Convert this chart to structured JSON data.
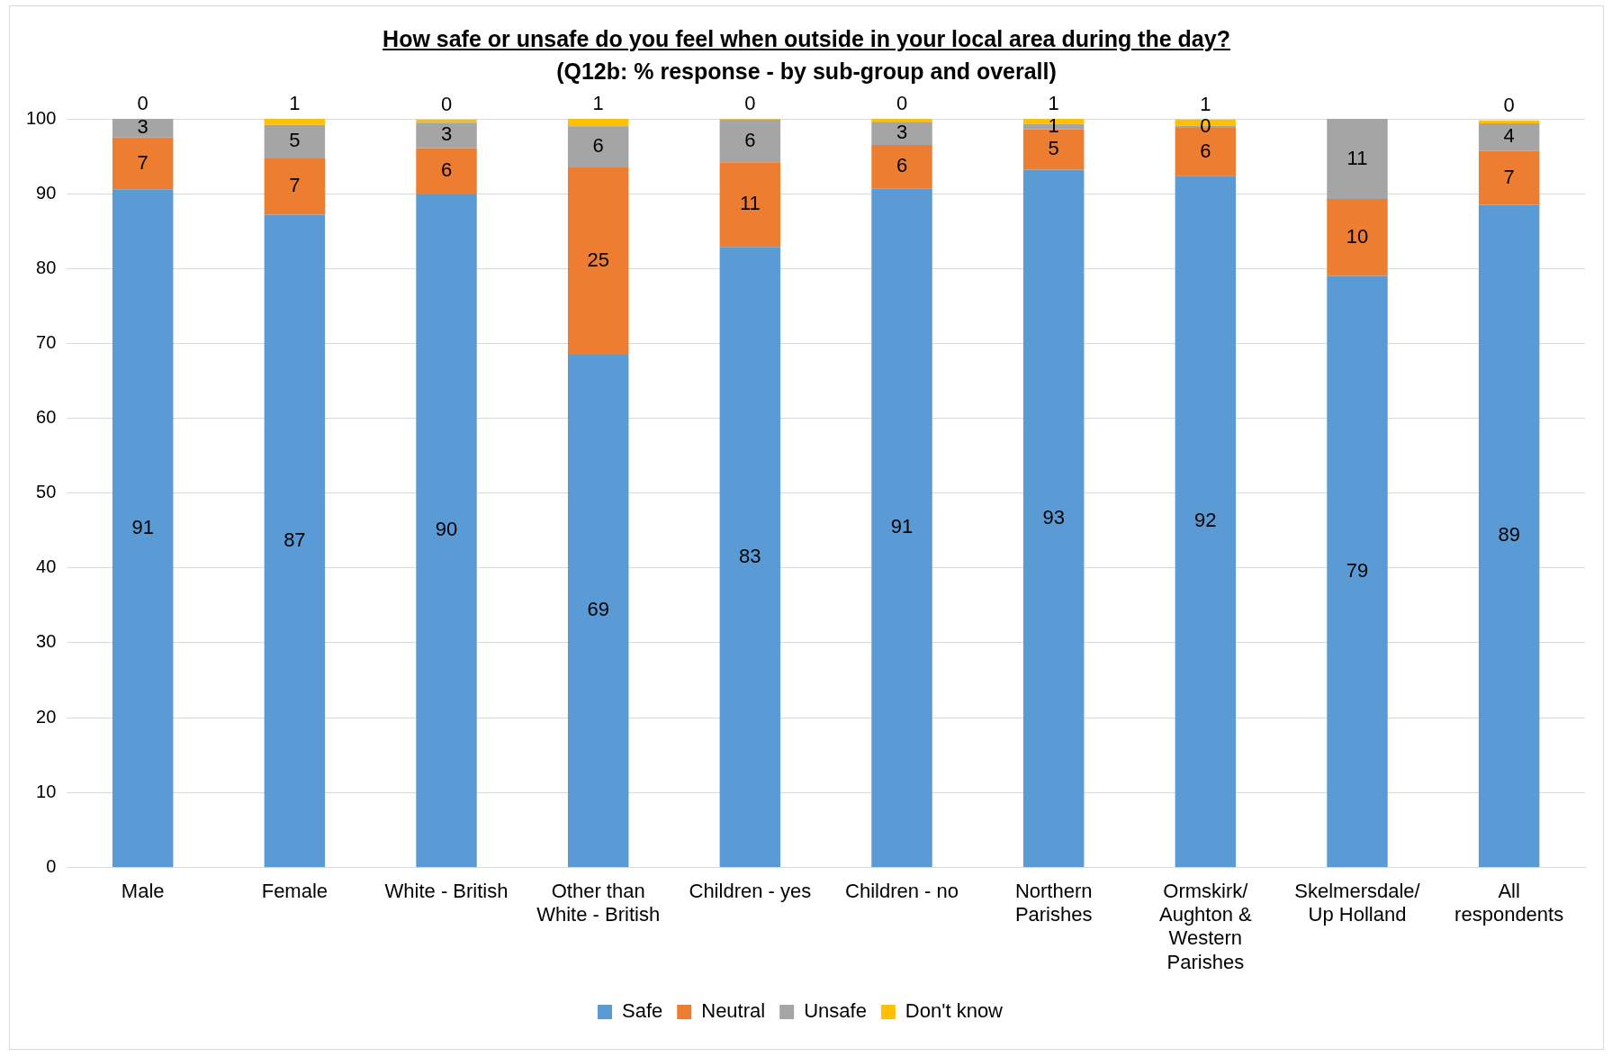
{
  "chart_data": {
    "type": "bar",
    "stacked": true,
    "title": "How safe or unsafe do you feel when outside in your local area during the day?",
    "subtitle": "(Q12b: % response - by sub-group and overall)",
    "categories": [
      "Male",
      "Female",
      "White - British",
      "Other than White - British",
      "Children - yes",
      "Children - no",
      "Northern Parishes",
      "Ormskirk/ Aughton & Western Parishes",
      "Skelmersdale/ Up Holland",
      "All respondents"
    ],
    "series": [
      {
        "name": "Safe",
        "color": "#5b9bd5",
        "values": [
          90.6,
          87.2,
          89.9,
          68.5,
          82.9,
          90.7,
          93.2,
          92.4,
          79.0,
          88.5
        ],
        "value_labels": [
          "91",
          "87",
          "90",
          "69",
          "83",
          "91",
          "93",
          "92",
          "79",
          "89"
        ]
      },
      {
        "name": "Neutral",
        "color": "#ed7d31",
        "values": [
          6.9,
          7.5,
          6.2,
          25.0,
          11.3,
          5.8,
          5.4,
          6.4,
          10.3,
          7.2
        ],
        "value_labels": [
          "7",
          "7",
          "6",
          "25",
          "11",
          "6",
          "5",
          "6",
          "10",
          "7"
        ]
      },
      {
        "name": "Unsafe",
        "color": "#a5a5a5",
        "values": [
          2.5,
          4.5,
          3.4,
          5.5,
          5.7,
          3.1,
          0.7,
          0.3,
          10.7,
          3.7
        ],
        "value_labels": [
          "3",
          "5",
          "3",
          "6",
          "6",
          "3",
          "1",
          "0",
          "11",
          "4"
        ]
      },
      {
        "name": "Don't know",
        "color": "#ffc000",
        "values": [
          0,
          0.8,
          0.4,
          1.0,
          0.1,
          0.4,
          0.7,
          0.8,
          null,
          0.4
        ],
        "value_labels": [
          "0",
          "1",
          "0",
          "1",
          "0",
          "0",
          "1",
          "1",
          null,
          "0"
        ]
      }
    ],
    "ylim": [
      0,
      100
    ],
    "yticks": [
      0,
      10,
      20,
      30,
      40,
      50,
      60,
      70,
      80,
      90,
      100
    ],
    "grid": "y",
    "legend": "bottom"
  }
}
